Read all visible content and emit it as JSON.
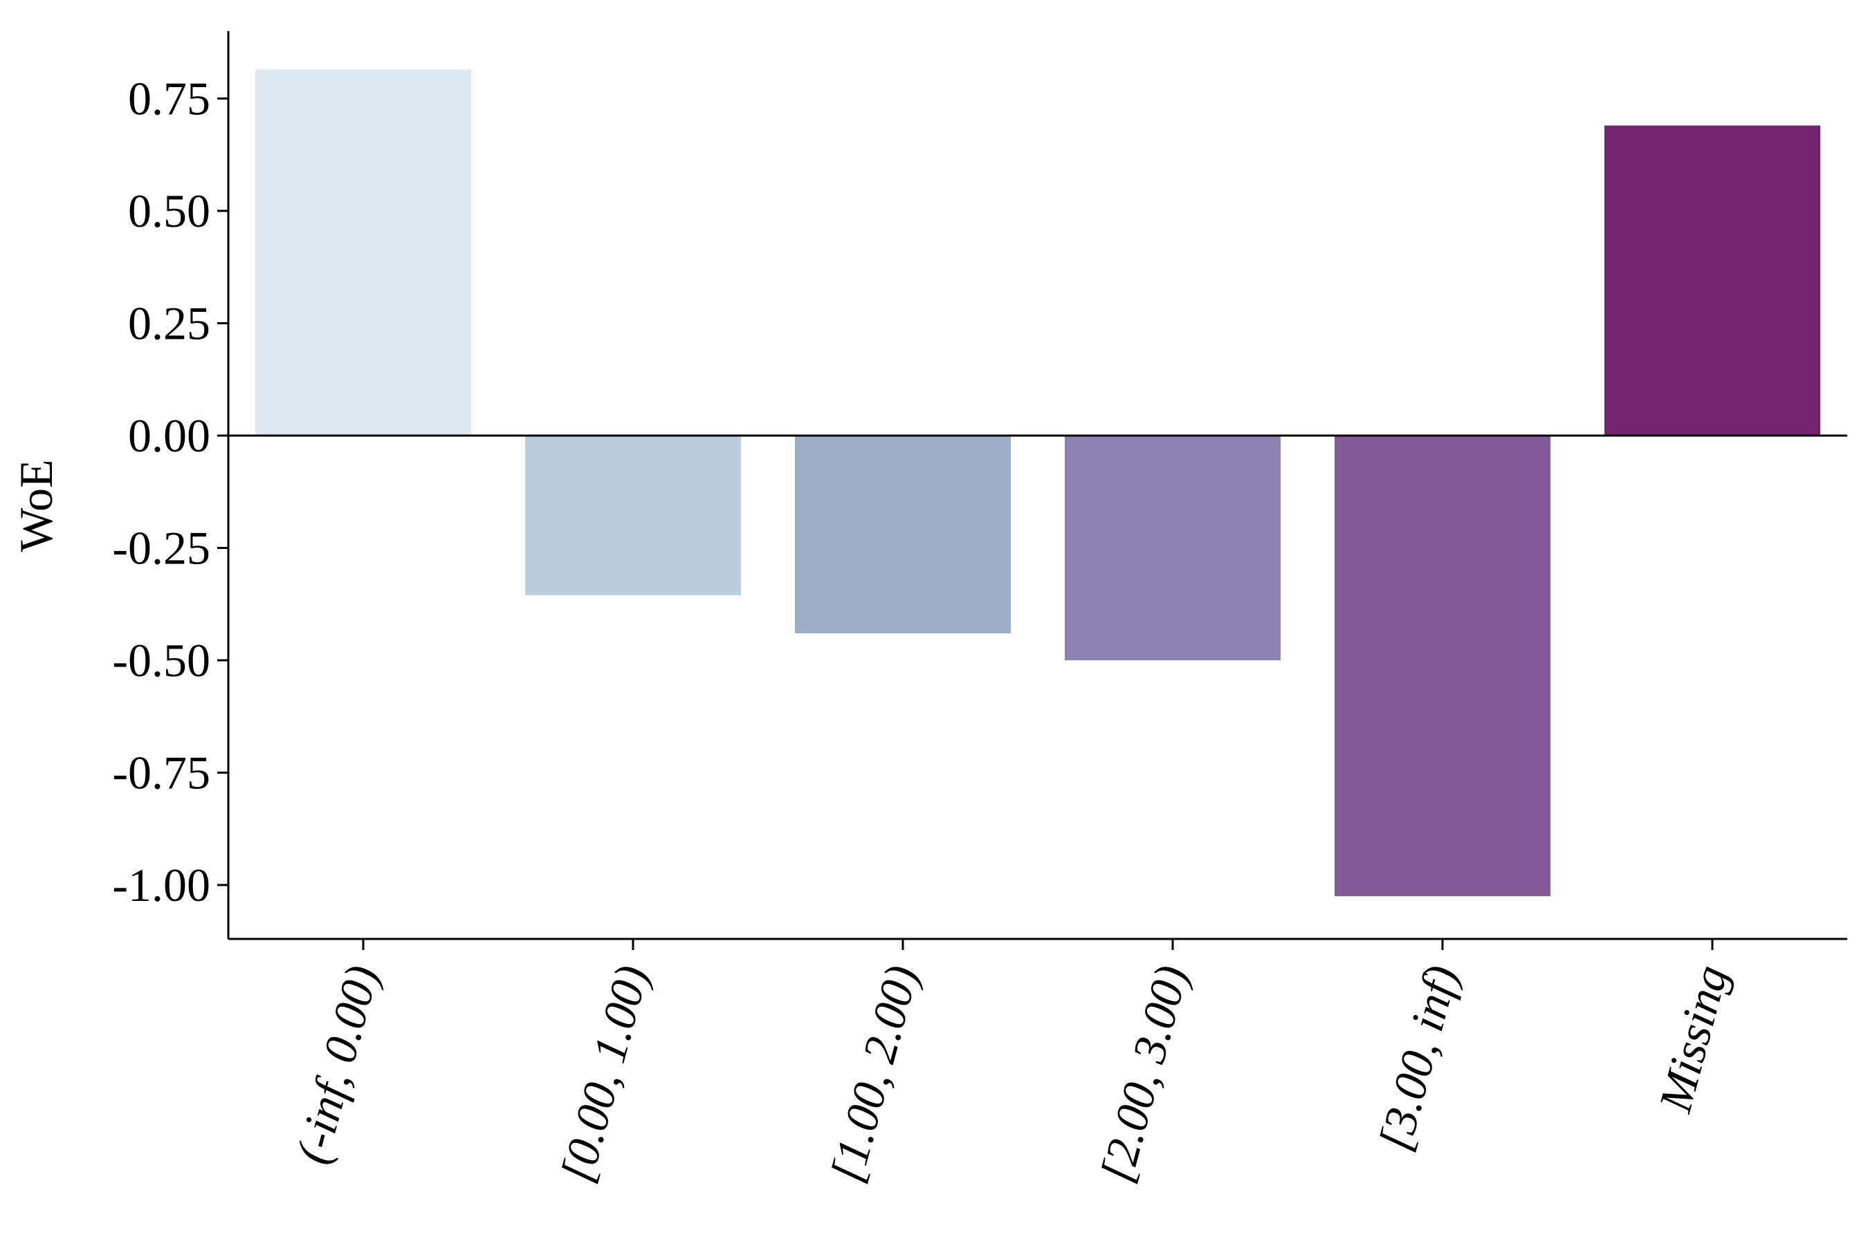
{
  "chart_data": {
    "type": "bar",
    "title": "",
    "xlabel": "",
    "ylabel": "WoE",
    "categories": [
      "(-inf, 0.00)",
      "[0.00, 1.00)",
      "[1.00, 2.00)",
      "[2.00, 3.00)",
      "[3.00, inf)",
      "Missing"
    ],
    "values": [
      0.815,
      -0.355,
      -0.44,
      -0.5,
      -1.025,
      0.69
    ],
    "colors": [
      "#dfe8f0",
      "#bccddd",
      "#9eaec9",
      "#8f84b1",
      "#845a97",
      "#73246f"
    ],
    "ylim": [
      -1.12,
      0.9
    ],
    "yticks": [
      0.75,
      0.5,
      0.25,
      0.0,
      -0.25,
      -0.5,
      -0.75,
      -1.0
    ],
    "ytick_labels": [
      "0.75",
      "0.50",
      "0.25",
      "0.00",
      "-0.25",
      "-0.50",
      "-0.75",
      "-1.00"
    ],
    "zero_line": true,
    "grid": false,
    "legend": "none"
  }
}
